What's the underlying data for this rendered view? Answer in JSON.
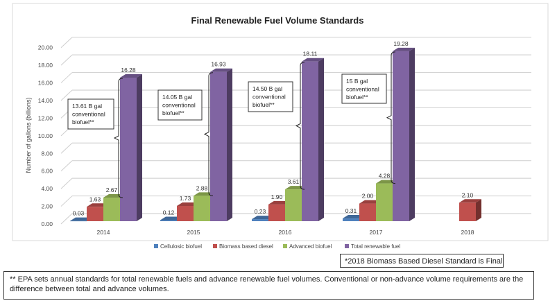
{
  "chart_data": {
    "type": "bar",
    "title": "Final Renewable Fuel Volume Standards",
    "ylabel": "Number of gallons (billions)",
    "xlabel": "",
    "ylim": [
      0,
      20
    ],
    "yticks": [
      "0.00",
      "2.00",
      "4.00",
      "6.00",
      "8.00",
      "10.00",
      "12.00",
      "14.00",
      "16.00",
      "18.00",
      "20.00"
    ],
    "grid": true,
    "legend_position": "bottom",
    "categories": [
      "2014",
      "2015",
      "2016",
      "2017",
      "2018"
    ],
    "series": [
      {
        "name": "Cellulosic biofuel",
        "color": "#4f81bd",
        "values": [
          0.03,
          0.12,
          0.23,
          0.31,
          null
        ],
        "labels": [
          "0.03",
          "0.12",
          "0.23",
          "0.31",
          ""
        ]
      },
      {
        "name": "Biomass based diesel",
        "color": "#c0504d",
        "values": [
          1.63,
          1.73,
          1.9,
          2.0,
          2.1
        ],
        "labels": [
          "1.63",
          "1.73",
          "1.90",
          "2.00",
          "2.10"
        ]
      },
      {
        "name": "Advanced biofuel",
        "color": "#9bbb59",
        "values": [
          2.67,
          2.88,
          3.61,
          4.28,
          null
        ],
        "labels": [
          "2.67",
          "2.88",
          "3.61",
          "4.28",
          ""
        ]
      },
      {
        "name": "Total renewable fuel",
        "color": "#8064a2",
        "values": [
          16.28,
          16.93,
          18.11,
          19.28,
          null
        ],
        "labels": [
          "16.28",
          "16.93",
          "18.11",
          "19.28",
          ""
        ]
      }
    ],
    "annotations": [
      [
        "13.61 B gal",
        "conventional",
        "biofuel**"
      ],
      [
        "14.05 B gal",
        "conventional",
        "biofuel**"
      ],
      [
        "14.50 B gal",
        "conventional",
        "biofuel**"
      ],
      [
        "15 B gal",
        "conventional",
        "biofuel**"
      ]
    ]
  },
  "footnotes": {
    "biomass": "*2018 Biomass Based Diesel Standard is Final",
    "epa": "** EPA sets annual standards for total renewable fuels and advance renewable fuel volumes.  Conventional or non-advance volume requirements are the difference between total and advance volumes."
  }
}
